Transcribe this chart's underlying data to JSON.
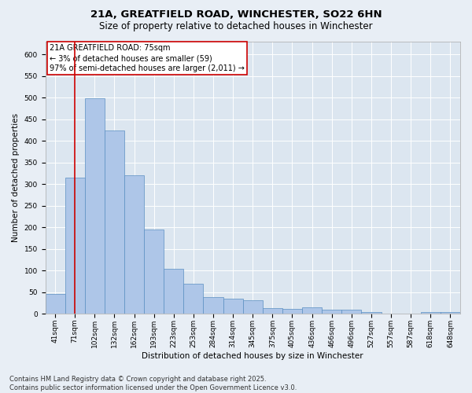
{
  "title_line1": "21A, GREATFIELD ROAD, WINCHESTER, SO22 6HN",
  "title_line2": "Size of property relative to detached houses in Winchester",
  "xlabel": "Distribution of detached houses by size in Winchester",
  "ylabel": "Number of detached properties",
  "categories": [
    "41sqm",
    "71sqm",
    "102sqm",
    "132sqm",
    "162sqm",
    "193sqm",
    "223sqm",
    "253sqm",
    "284sqm",
    "314sqm",
    "345sqm",
    "375sqm",
    "405sqm",
    "436sqm",
    "466sqm",
    "496sqm",
    "527sqm",
    "557sqm",
    "587sqm",
    "618sqm",
    "648sqm"
  ],
  "values": [
    46,
    315,
    498,
    424,
    320,
    195,
    105,
    70,
    38,
    35,
    31,
    13,
    12,
    15,
    10,
    9,
    5,
    0,
    0,
    4,
    5
  ],
  "bar_color": "#aec6e8",
  "bar_edge_color": "#5a8fc2",
  "vline_x": 1,
  "vline_color": "#cc0000",
  "annotation_text": "21A GREATFIELD ROAD: 75sqm\n← 3% of detached houses are smaller (59)\n97% of semi-detached houses are larger (2,011) →",
  "annotation_box_color": "#cc0000",
  "annotation_text_color": "#000000",
  "ylim": [
    0,
    630
  ],
  "yticks": [
    0,
    50,
    100,
    150,
    200,
    250,
    300,
    350,
    400,
    450,
    500,
    550,
    600
  ],
  "bg_color": "#e8eef5",
  "plot_bg_color": "#dce6f0",
  "grid_color": "#ffffff",
  "footer_line1": "Contains HM Land Registry data © Crown copyright and database right 2025.",
  "footer_line2": "Contains public sector information licensed under the Open Government Licence v3.0.",
  "title_fontsize": 9.5,
  "subtitle_fontsize": 8.5,
  "axis_label_fontsize": 7.5,
  "tick_fontsize": 6.5,
  "annotation_fontsize": 7,
  "footer_fontsize": 6
}
